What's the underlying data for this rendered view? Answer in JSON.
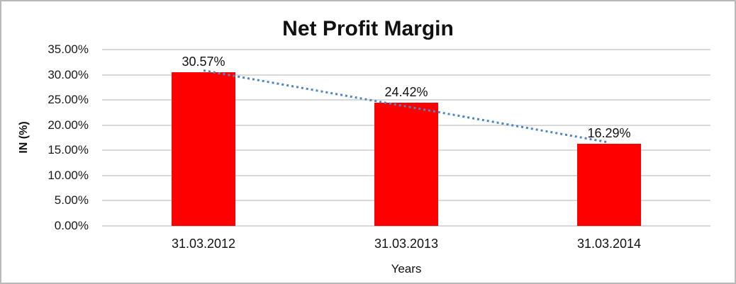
{
  "chart_data": {
    "type": "bar",
    "title": "Net Profit Margin",
    "categories": [
      "31.03.2012",
      "31.03.2013",
      "31.03.2014"
    ],
    "values": [
      30.57,
      24.42,
      16.29
    ],
    "data_labels": [
      "30.57%",
      "24.42%",
      "16.29%"
    ],
    "xlabel": "Years",
    "ylabel": "IN (%)",
    "ylim": [
      0,
      35
    ],
    "ytick_step": 5,
    "yticks": [
      "35.00%",
      "30.00%",
      "25.00%",
      "20.00%",
      "15.00%",
      "10.00%",
      "5.00%",
      "0.00%"
    ],
    "grid": true,
    "legend": "none",
    "bar_color": "#ff0000",
    "gridline_color": "#d9d9d9",
    "trendline": {
      "type": "linear",
      "style": "dotted",
      "color": "#4e86c8",
      "start_value": 30.9,
      "end_value": 16.62
    }
  }
}
